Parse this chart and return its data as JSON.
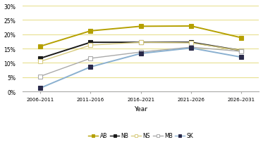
{
  "x_labels": [
    "2006–2011",
    "2011–2016",
    "2016–2021",
    "2021–2026",
    "2026–2031"
  ],
  "x_positions": [
    0,
    1,
    2,
    3,
    4
  ],
  "series": {
    "AB": {
      "values": [
        0.158,
        0.212,
        0.228,
        0.229,
        0.188
      ],
      "color": "#b5a000",
      "marker": "s",
      "markersize": 4,
      "linewidth": 1.4,
      "linestyle": "-",
      "markerfacecolor": "#b5a000",
      "markeredgecolor": "#b5a000"
    },
    "NB": {
      "values": [
        0.116,
        0.172,
        0.172,
        0.172,
        0.143
      ],
      "color": "#1a1a1a",
      "marker": "s",
      "markersize": 4,
      "linewidth": 1.4,
      "linestyle": "-",
      "markerfacecolor": "#1a1a1a",
      "markeredgecolor": "#1a1a1a"
    },
    "NS": {
      "values": [
        0.105,
        0.162,
        0.172,
        0.17,
        0.143
      ],
      "color": "#d8cc80",
      "marker": "s",
      "markersize": 4,
      "linewidth": 1.0,
      "linestyle": "-",
      "markerfacecolor": "#ffffff",
      "markeredgecolor": "#d8cc80"
    },
    "MB": {
      "values": [
        0.053,
        0.116,
        0.138,
        0.155,
        0.14
      ],
      "color": "#aaaaaa",
      "marker": "s",
      "markersize": 4,
      "linewidth": 1.0,
      "linestyle": "-",
      "markerfacecolor": "#ffffff",
      "markeredgecolor": "#aaaaaa"
    },
    "SK": {
      "values": [
        0.012,
        0.086,
        0.133,
        0.152,
        0.12
      ],
      "color": "#8ab0d0",
      "marker": "s",
      "markersize": 4,
      "linewidth": 1.4,
      "linestyle": "-",
      "markerfacecolor": "#2a2a4a",
      "markeredgecolor": "#2a2a4a"
    }
  },
  "xlabel": "Year",
  "ylim": [
    0.0,
    0.3
  ],
  "yticks": [
    0.0,
    0.05,
    0.1,
    0.15,
    0.2,
    0.25,
    0.3
  ],
  "ytick_labels": [
    "0%",
    "5%",
    "10%",
    "15%",
    "20%",
    "25%",
    "30%"
  ],
  "grid_color": "#e8e090",
  "bg_color": "#ffffff",
  "legend_order": [
    "AB",
    "NB",
    "NS",
    "MB",
    "SK"
  ]
}
